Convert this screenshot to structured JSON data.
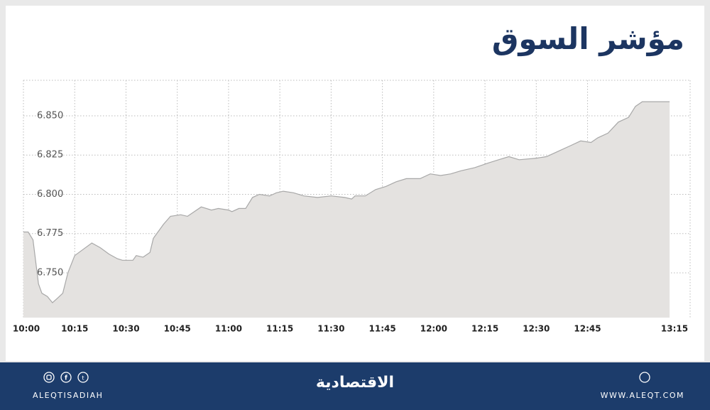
{
  "chart_data": {
    "type": "area",
    "title": "مؤشر السوق",
    "x": [
      0,
      1.4,
      2.8,
      4.4,
      5.4,
      7,
      8.5,
      10,
      11.5,
      13,
      15,
      17.5,
      20,
      22.5,
      25,
      27.5,
      29,
      32,
      33,
      35,
      37,
      38,
      41,
      43,
      46,
      48,
      50,
      52,
      55,
      57,
      60,
      61,
      63,
      65,
      67,
      69,
      72,
      74,
      76,
      79,
      82,
      86,
      90,
      94,
      96,
      97,
      100,
      103,
      106,
      109,
      112,
      116,
      119,
      122,
      125,
      128,
      132,
      136,
      139,
      142,
      145,
      150,
      153,
      156,
      160,
      163,
      166,
      168,
      171,
      174,
      177,
      179,
      181,
      189
    ],
    "values": [
      6.776,
      6.776,
      6.771,
      6.743,
      6.737,
      6.735,
      6.731,
      6.734,
      6.737,
      6.75,
      6.761,
      6.765,
      6.769,
      6.766,
      6.762,
      6.759,
      6.758,
      6.758,
      6.761,
      6.76,
      6.763,
      6.772,
      6.781,
      6.786,
      6.787,
      6.786,
      6.789,
      6.792,
      6.79,
      6.791,
      6.79,
      6.789,
      6.791,
      6.791,
      6.798,
      6.8,
      6.799,
      6.801,
      6.802,
      6.801,
      6.799,
      6.798,
      6.799,
      6.798,
      6.797,
      6.799,
      6.799,
      6.803,
      6.805,
      6.808,
      6.81,
      6.81,
      6.813,
      6.812,
      6.813,
      6.815,
      6.817,
      6.82,
      6.822,
      6.824,
      6.822,
      6.823,
      6.824,
      6.827,
      6.831,
      6.834,
      6.833,
      6.836,
      6.839,
      6.846,
      6.849,
      6.856,
      6.859,
      6.859
    ],
    "color": "#e4e2e0",
    "line_color": "#a8a8a8",
    "xlim": [
      0,
      195
    ],
    "ylim": [
      6.7215,
      6.8726
    ],
    "grid": true,
    "xticks": [
      {
        "value": 0,
        "label": "10:00"
      },
      {
        "value": 15,
        "label": "10:15"
      },
      {
        "value": 30,
        "label": "10:30"
      },
      {
        "value": 45,
        "label": "10:45"
      },
      {
        "value": 60,
        "label": "11:00"
      },
      {
        "value": 75,
        "label": "11:15"
      },
      {
        "value": 90,
        "label": "11:30"
      },
      {
        "value": 105,
        "label": "11:45"
      },
      {
        "value": 120,
        "label": "12:00"
      },
      {
        "value": 135,
        "label": "12:15"
      },
      {
        "value": 150,
        "label": "12:30"
      },
      {
        "value": 165,
        "label": "12:45"
      },
      {
        "value": 195,
        "label": "13:15"
      }
    ],
    "yticks": [
      {
        "value": 6.75,
        "label": "6.750"
      },
      {
        "value": 6.775,
        "label": "6.775"
      },
      {
        "value": 6.8,
        "label": "6.800"
      },
      {
        "value": 6.825,
        "label": "6.825"
      },
      {
        "value": 6.85,
        "label": "6.850"
      }
    ]
  },
  "footer": {
    "social": "ALEQTISADIAH",
    "logo": "الاقتصادية",
    "site": "WWW.ALEQT.COM"
  }
}
